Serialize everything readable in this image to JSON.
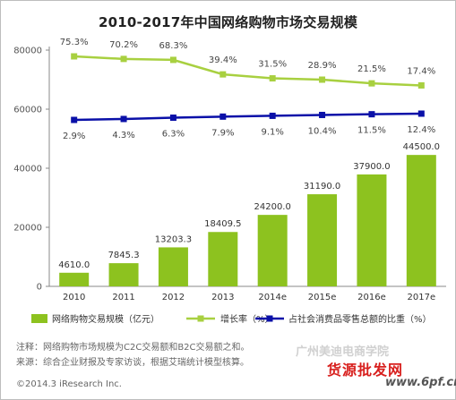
{
  "title": "2010-2017年中国网络购物市场交易规模",
  "chart_data": {
    "type": "bar",
    "categories": [
      "2010",
      "2011",
      "2012",
      "2013",
      "2014e",
      "2015e",
      "2016e",
      "2017e"
    ],
    "series": [
      {
        "name": "网络购物交易规模（亿元）",
        "type": "bar",
        "values": [
          4610.0,
          7845.3,
          13203.3,
          18409.5,
          24200.0,
          31190.0,
          37900.0,
          44500.0
        ],
        "labels": [
          "4610.0",
          "7845.3",
          "13203.3",
          "18409.5",
          "24200.0",
          "31190.0",
          "37900.0",
          "44500.0"
        ],
        "color": "#8dc21f"
      },
      {
        "name": "增长率（%）",
        "type": "line",
        "values": [
          75.3,
          70.2,
          68.3,
          39.4,
          31.5,
          28.9,
          21.5,
          17.4
        ],
        "labels": [
          "75.3%",
          "70.2%",
          "68.3%",
          "39.4%",
          "31.5%",
          "28.9%",
          "21.5%",
          "17.4%"
        ],
        "color": "#a8d040"
      },
      {
        "name": "占社会消费品零售总额的比重（%）",
        "type": "line",
        "values": [
          2.9,
          4.3,
          6.3,
          7.9,
          9.1,
          10.4,
          11.5,
          12.4
        ],
        "labels": [
          "2.9%",
          "4.3%",
          "6.3%",
          "7.9%",
          "9.1%",
          "10.4%",
          "11.5%",
          "12.4%"
        ],
        "color": "#0a10a8"
      }
    ],
    "y_ticks": [
      "0",
      "20000",
      "40000",
      "60000",
      "80000"
    ],
    "ylim": [
      0,
      80000
    ],
    "grid": false,
    "legend_position": "bottom"
  },
  "notes": [
    "注释：网络购物市场规模为C2C交易额和B2C交易额之和。",
    "来源：综合企业财报及专家访谈，根据艾瑞统计模型核算。"
  ],
  "copyright": "©2014.3 iResearch Inc.",
  "watermarks": {
    "site_cn": "广州美迪电商学院",
    "promo": "货源批发网",
    "domain": "www.6pf.cn"
  }
}
